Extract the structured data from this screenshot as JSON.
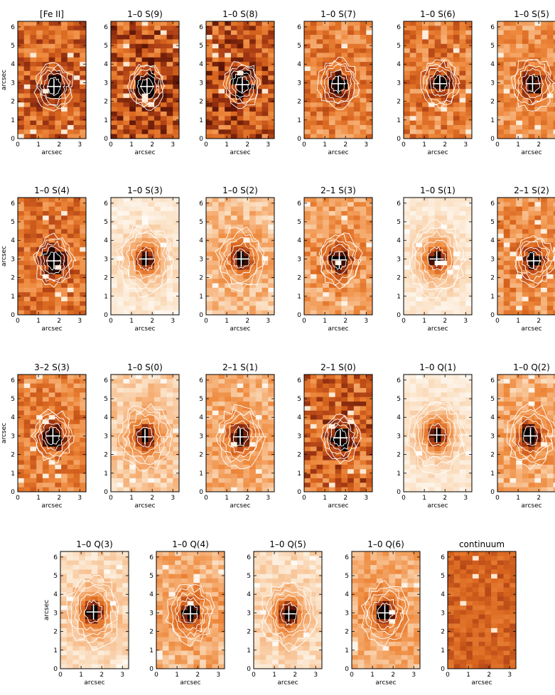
{
  "figure": {
    "x_axis_label": "arcsec",
    "y_axis_label": "arcsec",
    "x_ticks": [
      "0",
      "1",
      "2",
      "3"
    ],
    "y_ticks": [
      "0",
      "1",
      "2",
      "3",
      "4",
      "5",
      "6"
    ],
    "x_range": [
      0,
      3.3
    ],
    "y_range": [
      0,
      6.3
    ],
    "colormap": [
      "#ffffff",
      "#fbe3c8",
      "#f6b27a",
      "#ee8a3e",
      "#d9661f",
      "#a83b14",
      "#5a1405",
      "#000000"
    ],
    "contour_color": "#ffffff",
    "source_marker": "plus"
  },
  "panels": [
    {
      "id": "fe-ii",
      "title": "[Fe II]",
      "peak_x": 1.75,
      "peak_y": 2.8,
      "background": 0.55,
      "peak": 0.9,
      "noise": 0.25,
      "halo": 0.25
    },
    {
      "id": "1-0-s9",
      "title": "1–0 S(9)",
      "peak_x": 1.75,
      "peak_y": 2.8,
      "background": 0.6,
      "peak": 0.85,
      "noise": 0.3,
      "halo": 0.2
    },
    {
      "id": "1-0-s8",
      "title": "1–0 S(8)",
      "peak_x": 1.75,
      "peak_y": 2.9,
      "background": 0.6,
      "peak": 0.8,
      "noise": 0.3,
      "halo": 0.2
    },
    {
      "id": "1-0-s7",
      "title": "1–0 S(7)",
      "peak_x": 1.65,
      "peak_y": 2.95,
      "background": 0.45,
      "peak": 0.95,
      "noise": 0.22,
      "halo": 0.3
    },
    {
      "id": "1-0-s6",
      "title": "1–0 S(6)",
      "peak_x": 1.75,
      "peak_y": 2.95,
      "background": 0.45,
      "peak": 0.9,
      "noise": 0.25,
      "halo": 0.25
    },
    {
      "id": "1-0-s5",
      "title": "1–0 S(5)",
      "peak_x": 1.7,
      "peak_y": 2.95,
      "background": 0.4,
      "peak": 0.95,
      "noise": 0.2,
      "halo": 0.35
    },
    {
      "id": "1-0-s4",
      "title": "1–0 S(4)",
      "peak_x": 1.75,
      "peak_y": 2.9,
      "background": 0.5,
      "peak": 0.9,
      "noise": 0.22,
      "halo": 0.3
    },
    {
      "id": "1-0-s3",
      "title": "1–0 S(3)",
      "peak_x": 1.7,
      "peak_y": 3.0,
      "background": 0.1,
      "peak": 1.0,
      "noise": 0.08,
      "halo": 0.75
    },
    {
      "id": "1-0-s2",
      "title": "1–0 S(2)",
      "peak_x": 1.7,
      "peak_y": 3.0,
      "background": 0.25,
      "peak": 1.0,
      "noise": 0.15,
      "halo": 0.55
    },
    {
      "id": "2-1-s3",
      "title": "2–1 S(3)",
      "peak_x": 1.7,
      "peak_y": 2.95,
      "background": 0.35,
      "peak": 0.95,
      "noise": 0.2,
      "halo": 0.4
    },
    {
      "id": "1-0-s1",
      "title": "1–0 S(1)",
      "peak_x": 1.6,
      "peak_y": 3.0,
      "background": 0.1,
      "peak": 1.0,
      "noise": 0.07,
      "halo": 0.8
    },
    {
      "id": "2-1-s2",
      "title": "2–1 S(2)",
      "peak_x": 1.75,
      "peak_y": 2.9,
      "background": 0.4,
      "peak": 0.85,
      "noise": 0.22,
      "halo": 0.3
    },
    {
      "id": "3-2-s3",
      "title": "3–2 S(3)",
      "peak_x": 1.7,
      "peak_y": 3.0,
      "background": 0.45,
      "peak": 0.9,
      "noise": 0.2,
      "halo": 0.3
    },
    {
      "id": "1-0-s0",
      "title": "1–0 S(0)",
      "peak_x": 1.65,
      "peak_y": 2.95,
      "background": 0.2,
      "peak": 1.0,
      "noise": 0.12,
      "halo": 0.6
    },
    {
      "id": "2-1-s1",
      "title": "2–1 S(1)",
      "peak_x": 1.65,
      "peak_y": 2.95,
      "background": 0.3,
      "peak": 0.95,
      "noise": 0.15,
      "halo": 0.5
    },
    {
      "id": "2-1-s0",
      "title": "2–1 S(0)",
      "peak_x": 1.75,
      "peak_y": 2.9,
      "background": 0.55,
      "peak": 0.85,
      "noise": 0.28,
      "halo": 0.25
    },
    {
      "id": "1-0-q1",
      "title": "1–0 Q(1)",
      "peak_x": 1.6,
      "peak_y": 3.05,
      "background": 0.1,
      "peak": 1.0,
      "noise": 0.07,
      "halo": 0.8
    },
    {
      "id": "1-0-q2",
      "title": "1–0 Q(2)",
      "peak_x": 1.6,
      "peak_y": 3.0,
      "background": 0.3,
      "peak": 0.95,
      "noise": 0.18,
      "halo": 0.55
    },
    {
      "id": "1-0-q3",
      "title": "1–0 Q(3)",
      "peak_x": 1.6,
      "peak_y": 3.05,
      "background": 0.15,
      "peak": 1.0,
      "noise": 0.1,
      "halo": 0.75
    },
    {
      "id": "1-0-q4",
      "title": "1–0 Q(4)",
      "peak_x": 1.65,
      "peak_y": 2.95,
      "background": 0.3,
      "peak": 1.0,
      "noise": 0.18,
      "halo": 0.5
    },
    {
      "id": "1-0-q5",
      "title": "1–0 Q(5)",
      "peak_x": 1.7,
      "peak_y": 2.95,
      "background": 0.15,
      "peak": 1.0,
      "noise": 0.1,
      "halo": 0.7
    },
    {
      "id": "1-0-q6",
      "title": "1–0 Q(6)",
      "peak_x": 1.6,
      "peak_y": 3.0,
      "background": 0.3,
      "peak": 0.95,
      "noise": 0.15,
      "halo": 0.5
    },
    {
      "id": "continuum",
      "title": "continuum",
      "peak_x": 1.6,
      "peak_y": 3.0,
      "background": 0.58,
      "peak": 0.0,
      "noise": 0.12,
      "halo": 0.0
    }
  ]
}
